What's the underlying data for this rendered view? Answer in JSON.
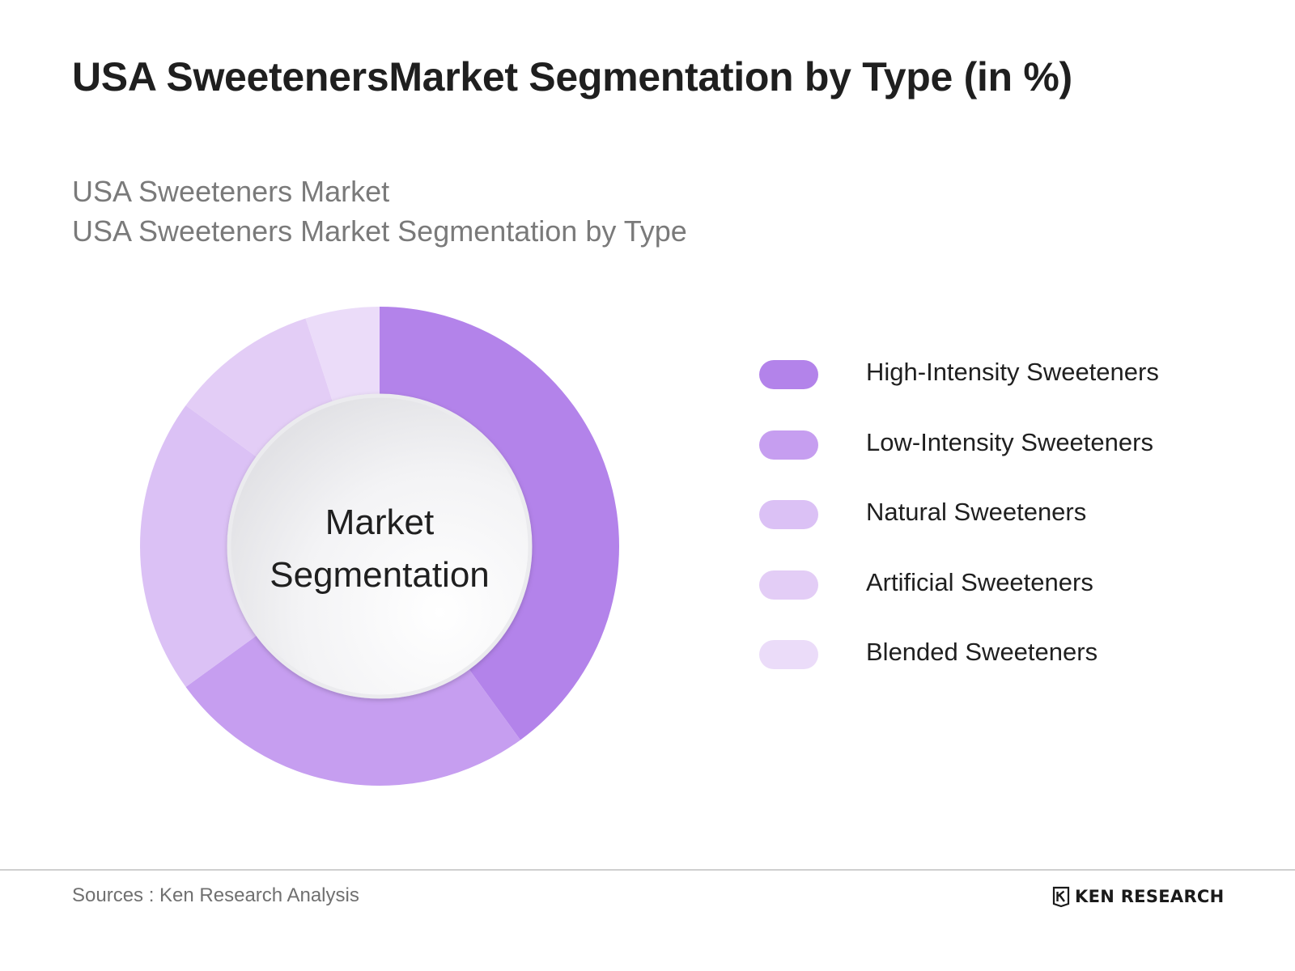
{
  "header": {
    "title": "USA SweetenersMarket Segmentation by Type (in %)",
    "subtitle_line1": "USA Sweeteners Market",
    "subtitle_line2": "USA Sweeteners Market Segmentation by Type"
  },
  "chart_data": {
    "type": "pie",
    "variant": "donut",
    "center_label": [
      "Market",
      "Segmentation"
    ],
    "legend_position": "right",
    "categories": [
      "High-Intensity Sweeteners",
      "Low-Intensity Sweeteners",
      "Natural Sweeteners",
      "Artificial Sweeteners",
      "Blended Sweeteners"
    ],
    "values": [
      40,
      25,
      20,
      10,
      5
    ],
    "colors": [
      "#b383ea",
      "#c69ef0",
      "#dbc1f5",
      "#e3cdf6",
      "#ebdcf9"
    ]
  },
  "footer": {
    "source": "Sources : Ken Research Analysis",
    "brand_name": "KEN RESEARCH",
    "brand_icon": "ken-research-logo-icon"
  }
}
